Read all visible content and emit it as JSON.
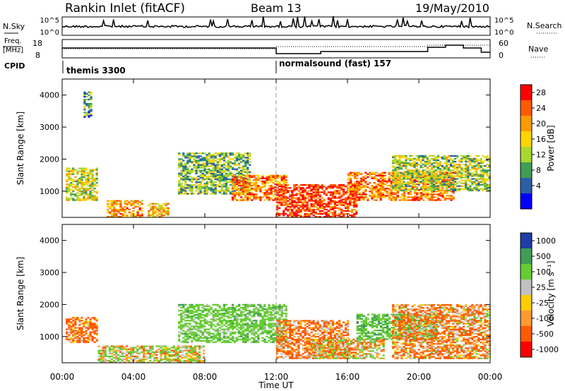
{
  "header": {
    "station": "Rankin Inlet (fitACF)",
    "beam": "Beam 13",
    "date": "19/May/2010"
  },
  "noise_panel": {
    "left_label": "N.Sky",
    "right_label": "N.Search",
    "ticks": [
      "10^5",
      "10^0"
    ]
  },
  "freq_panel": {
    "left_label_1": "Freq.",
    "left_label_2": "[MHz]",
    "left_ticks": [
      "18",
      "8"
    ],
    "right_label": "Nave",
    "right_ticks": [
      "60",
      "0"
    ]
  },
  "cpid": {
    "label": "CPID",
    "segments": [
      "themis 3300",
      "normalsound (fast) 157"
    ]
  },
  "x_axis": {
    "title": "Time UT",
    "ticks": [
      "00:00",
      "04:00",
      "08:00",
      "12:00",
      "16:00",
      "20:00",
      "00:00"
    ]
  },
  "power_panel": {
    "ylabel": "Slant Range [km]",
    "yticks": [
      "1000",
      "2000",
      "3000",
      "4000"
    ],
    "colorbar_label": "Power [dB]",
    "colorbar_ticks": [
      "28",
      "24",
      "20",
      "16",
      "12",
      "8",
      "4"
    ],
    "colors": [
      "#ff0000",
      "#ff5a00",
      "#ff9a00",
      "#ffd400",
      "#a8d830",
      "#3f9e56",
      "#2b5fa6",
      "#0000ff"
    ]
  },
  "velocity_panel": {
    "ylabel": "Slant Range [km]",
    "yticks": [
      "1000",
      "2000",
      "3000",
      "4000"
    ],
    "colorbar_label": "Velocity [m s⁻¹]",
    "colorbar_ticks": [
      "1000",
      "500",
      "100",
      "25",
      "-25",
      "-100",
      "-500",
      "-1000"
    ],
    "colors": [
      "#1f3fa6",
      "#3f9e56",
      "#66cc33",
      "#c0c0c0",
      "#ffcc00",
      "#ff9933",
      "#ff5a00",
      "#ff0000"
    ]
  },
  "chart_data": [
    {
      "type": "heatmap",
      "title": "Power [dB]",
      "xlabel": "Time UT",
      "ylabel": "Slant Range [km]",
      "xlim": [
        "00:00",
        "24:00"
      ],
      "ylim": [
        180,
        4500
      ],
      "zlim": [
        0,
        30
      ],
      "regions": [
        {
          "t": [
            0.2,
            2.0
          ],
          "range": [
            700,
            1700
          ],
          "power": 14
        },
        {
          "t": [
            1.2,
            1.6
          ],
          "range": [
            3300,
            4100
          ],
          "power": 8
        },
        {
          "t": [
            2.5,
            4.5
          ],
          "range": [
            180,
            700
          ],
          "power": 20
        },
        {
          "t": [
            4.8,
            6.0
          ],
          "range": [
            180,
            600
          ],
          "power": 18
        },
        {
          "t": [
            6.5,
            10.5
          ],
          "range": [
            900,
            2200
          ],
          "power": 10
        },
        {
          "t": [
            9.5,
            12.5
          ],
          "range": [
            700,
            1500
          ],
          "power": 22
        },
        {
          "t": [
            12.0,
            16.5
          ],
          "range": [
            180,
            1200
          ],
          "power": 26
        },
        {
          "t": [
            16.0,
            22.0
          ],
          "range": [
            700,
            1600
          ],
          "power": 22
        },
        {
          "t": [
            18.5,
            24.0
          ],
          "range": [
            1000,
            2100
          ],
          "power": 12
        }
      ]
    },
    {
      "type": "heatmap",
      "title": "Velocity [m s⁻¹]",
      "xlabel": "Time UT",
      "ylabel": "Slant Range [km]",
      "xlim": [
        "00:00",
        "24:00"
      ],
      "ylim": [
        180,
        4500
      ],
      "zlim": [
        -1000,
        1000
      ],
      "regions": [
        {
          "t": [
            0.2,
            2.0
          ],
          "range": [
            800,
            1600
          ],
          "velocity": -200
        },
        {
          "t": [
            2.0,
            8.0
          ],
          "range": [
            180,
            700
          ],
          "velocity": 80
        },
        {
          "t": [
            6.5,
            12.5
          ],
          "range": [
            800,
            2000
          ],
          "velocity": 300
        },
        {
          "t": [
            12.0,
            16.0
          ],
          "range": [
            300,
            1500
          ],
          "velocity": -150
        },
        {
          "t": [
            14.0,
            18.0
          ],
          "range": [
            300,
            900
          ],
          "velocity": 10
        },
        {
          "t": [
            16.5,
            21.0
          ],
          "range": [
            900,
            1700
          ],
          "velocity": 400
        },
        {
          "t": [
            18.5,
            24.0
          ],
          "range": [
            300,
            2000
          ],
          "velocity": -120
        }
      ]
    }
  ]
}
